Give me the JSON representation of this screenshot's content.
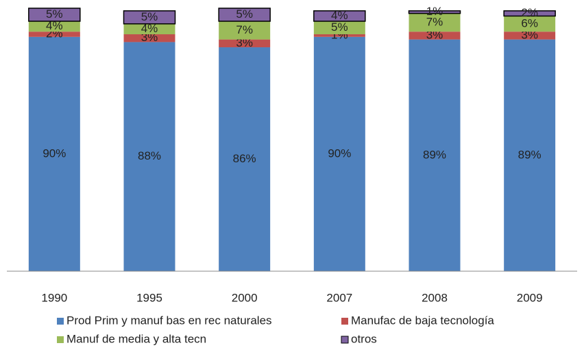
{
  "chart_data": {
    "type": "stacked_bar",
    "categories": [
      "1990",
      "1995",
      "2000",
      "2007",
      "2008",
      "2009"
    ],
    "series": [
      {
        "name": "Prod Prim y manuf bas en rec naturales",
        "color": "#4f81bd",
        "values": [
          90,
          88,
          86,
          90,
          89,
          89
        ],
        "value_labels": [
          "90%",
          "88%",
          "86%",
          "90%",
          "89%",
          "89%"
        ]
      },
      {
        "name": "Manufac de baja tecnología",
        "color": "#c0504d",
        "values": [
          2,
          3,
          3,
          1,
          3,
          3
        ],
        "value_labels": [
          "2%",
          "3%",
          "3%",
          "1%",
          "3%",
          "3%"
        ]
      },
      {
        "name": "Manuf de media y alta tecn",
        "color": "#9bbb59",
        "values": [
          4,
          4,
          7,
          5,
          7,
          6
        ],
        "value_labels": [
          "4%",
          "4%",
          "7%",
          "5%",
          "7%",
          "6%"
        ]
      },
      {
        "name": "otros",
        "color": "#8064a2",
        "values": [
          5,
          5,
          5,
          4,
          1,
          2
        ],
        "value_labels": [
          "5%",
          "5%",
          "5%",
          "4%",
          "1%",
          "2%"
        ]
      }
    ]
  }
}
